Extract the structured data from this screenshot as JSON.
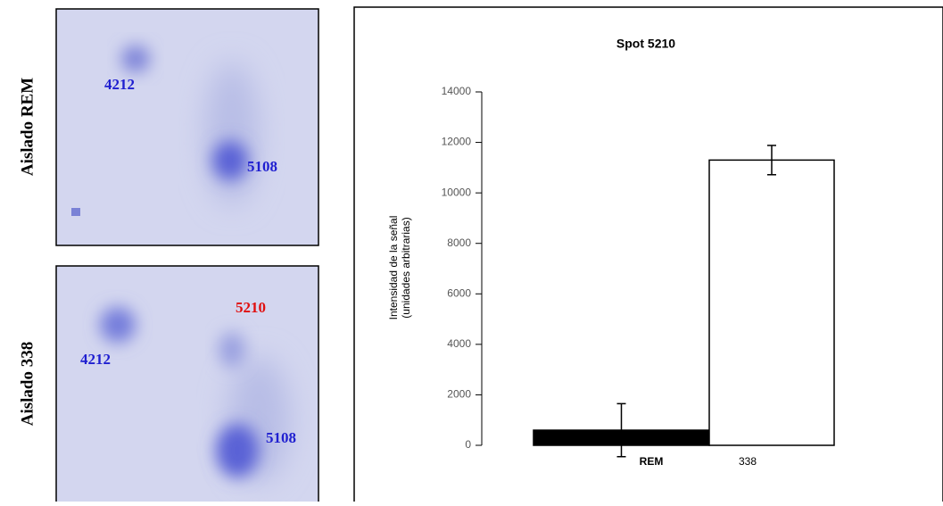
{
  "gel_panels": [
    {
      "label": "Aislado REM",
      "spots": [
        {
          "label": "4212",
          "color": "#1f1fd0"
        },
        {
          "label": "5108",
          "color": "#1f1fd0"
        }
      ]
    },
    {
      "label": "Aislado 338",
      "spots": [
        {
          "label": "5210",
          "color": "#e01010"
        },
        {
          "label": "4212",
          "color": "#1f1fd0"
        },
        {
          "label": "5108",
          "color": "#1f1fd0"
        }
      ]
    }
  ],
  "chart_data": {
    "type": "bar",
    "title": "Spot 5210",
    "y_label": [
      "Intensidad de la señal",
      "(unidades arbitrarias)"
    ],
    "categories": [
      "REM",
      "338"
    ],
    "values": [
      600,
      11300
    ],
    "errors": [
      1050,
      580
    ],
    "colors": [
      "#000000",
      "#ffffff"
    ],
    "ylim": [
      0,
      14000
    ],
    "yticks": [
      0,
      2000,
      4000,
      6000,
      8000,
      10000,
      12000,
      14000
    ],
    "grid": false
  }
}
